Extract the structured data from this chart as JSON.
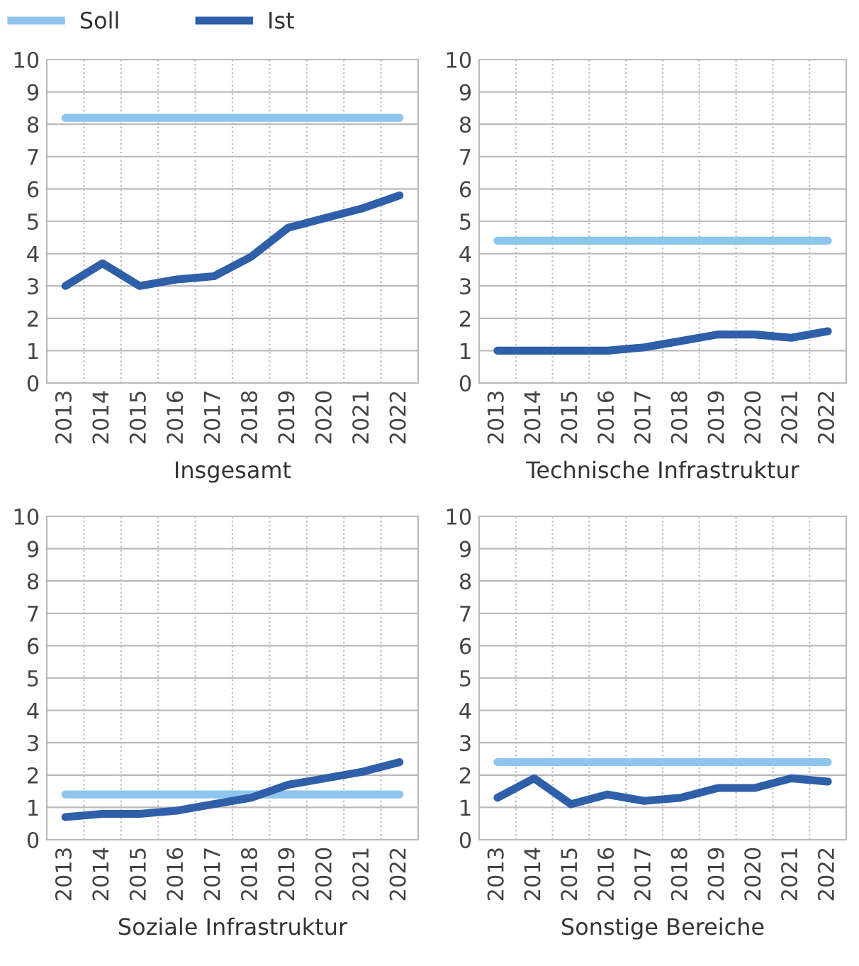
{
  "chart_data": [
    {
      "type": "line",
      "xlabel": "Insgesamt",
      "categories": [
        "2013",
        "2014",
        "2015",
        "2016",
        "2017",
        "2018",
        "2019",
        "2020",
        "2021",
        "2022"
      ],
      "ylim": [
        0,
        10
      ],
      "yticks": [
        0,
        1,
        2,
        3,
        4,
        5,
        6,
        7,
        8,
        9,
        10
      ],
      "grid": true,
      "legend": "top",
      "marker": "none",
      "line_style": "solid",
      "series": [
        {
          "name": "Soll",
          "color": "#8ec5ec",
          "values": [
            8.2,
            8.2,
            8.2,
            8.2,
            8.2,
            8.2,
            8.2,
            8.2,
            8.2,
            8.2
          ]
        },
        {
          "name": "Ist",
          "color": "#2e5fa8",
          "values": [
            3.0,
            3.7,
            3.0,
            3.2,
            3.3,
            3.9,
            4.8,
            5.1,
            5.4,
            5.8
          ]
        }
      ]
    },
    {
      "type": "line",
      "xlabel": "Technische Infrastruktur",
      "categories": [
        "2013",
        "2014",
        "2015",
        "2016",
        "2017",
        "2018",
        "2019",
        "2020",
        "2021",
        "2022"
      ],
      "ylim": [
        0,
        10
      ],
      "yticks": [
        0,
        1,
        2,
        3,
        4,
        5,
        6,
        7,
        8,
        9,
        10
      ],
      "grid": true,
      "marker": "none",
      "line_style": "solid",
      "series": [
        {
          "color": "#8ec5ec",
          "values": [
            4.4,
            4.4,
            4.4,
            4.4,
            4.4,
            4.4,
            4.4,
            4.4,
            4.4,
            4.4
          ]
        },
        {
          "color": "#2e5fa8",
          "values": [
            1.0,
            1.0,
            1.0,
            1.0,
            1.1,
            1.3,
            1.5,
            1.5,
            1.4,
            1.6
          ]
        }
      ]
    },
    {
      "type": "line",
      "xlabel": "Soziale Infrastruktur",
      "categories": [
        "2013",
        "2014",
        "2015",
        "2016",
        "2017",
        "2018",
        "2019",
        "2020",
        "2021",
        "2022"
      ],
      "ylim": [
        0,
        10
      ],
      "yticks": [
        0,
        1,
        2,
        3,
        4,
        5,
        6,
        7,
        8,
        9,
        10
      ],
      "grid": true,
      "marker": "none",
      "line_style": "solid",
      "series": [
        {
          "color": "#8ec5ec",
          "values": [
            1.4,
            1.4,
            1.4,
            1.4,
            1.4,
            1.4,
            1.4,
            1.4,
            1.4,
            1.4
          ]
        },
        {
          "color": "#2e5fa8",
          "values": [
            0.7,
            0.8,
            0.8,
            0.9,
            1.1,
            1.3,
            1.7,
            1.9,
            2.1,
            2.4
          ]
        }
      ]
    },
    {
      "type": "line",
      "xlabel": "Sonstige Bereiche",
      "categories": [
        "2013",
        "2014",
        "2015",
        "2016",
        "2017",
        "2018",
        "2019",
        "2020",
        "2021",
        "2022"
      ],
      "ylim": [
        0,
        10
      ],
      "yticks": [
        0,
        1,
        2,
        3,
        4,
        5,
        6,
        7,
        8,
        9,
        10
      ],
      "grid": true,
      "marker": "none",
      "line_style": "solid",
      "series": [
        {
          "color": "#8ec5ec",
          "values": [
            2.4,
            2.4,
            2.4,
            2.4,
            2.4,
            2.4,
            2.4,
            2.4,
            2.4,
            2.4
          ]
        },
        {
          "color": "#2e5fa8",
          "values": [
            1.3,
            1.9,
            1.1,
            1.4,
            1.2,
            1.3,
            1.6,
            1.6,
            1.9,
            1.8
          ]
        }
      ]
    }
  ]
}
